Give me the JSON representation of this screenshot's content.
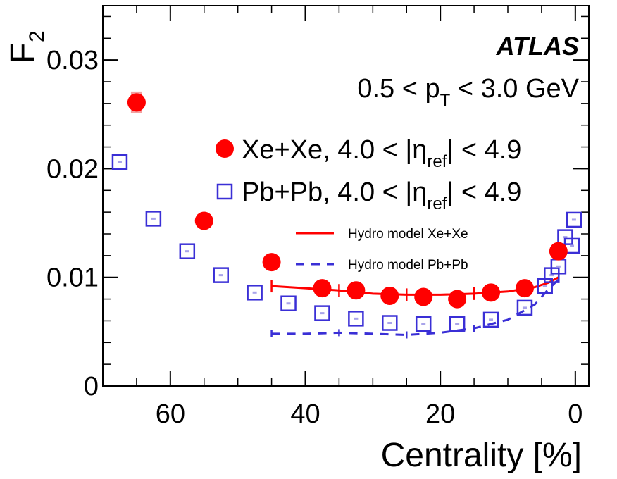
{
  "chart_data": {
    "type": "scatter",
    "title": "",
    "xlabel": "Centrality [%]",
    "ylabel": "F",
    "ylabel_subscript": "2",
    "xlim": [
      70,
      -2
    ],
    "ylim": [
      0,
      0.035
    ],
    "x_ticks": [
      60,
      40,
      20,
      0
    ],
    "y_ticks": [
      0,
      0.01,
      0.02,
      0.03
    ],
    "x_tick_labels": [
      "60",
      "40",
      "20",
      "0"
    ],
    "y_tick_labels": [
      "0",
      "0.01",
      "0.02",
      "0.03"
    ],
    "annotations": {
      "experiment": "ATLAS",
      "pt_range": {
        "prefix": "0.5 < p",
        "sub": "T",
        "suffix": " < 3.0 GeV"
      }
    },
    "series": [
      {
        "name": "Xe+Xe, 4.0 < |η_ref| < 4.9",
        "legend": {
          "prefix": "Xe+Xe, 4.0 < |η",
          "sub": "ref",
          "suffix": "| < 4.9"
        },
        "marker": "filled-circle",
        "color": "#ff0000",
        "x": [
          65,
          55,
          45,
          37.5,
          32.5,
          27.5,
          22.5,
          17.5,
          12.5,
          7.5,
          2.5
        ],
        "y": [
          0.0261,
          0.0152,
          0.0114,
          0.009,
          0.0088,
          0.0083,
          0.0082,
          0.008,
          0.0086,
          0.009,
          0.0124
        ],
        "sys_err": [
          0.001,
          0.0004,
          0.0003,
          0.0002,
          0.0002,
          0.0002,
          0.0002,
          0.0002,
          0.0002,
          0.0002,
          0.0003
        ]
      },
      {
        "name": "Pb+Pb, 4.0 < |η_ref| < 4.9",
        "legend": {
          "prefix": "Pb+Pb, 4.0 < |η",
          "sub": "ref",
          "suffix": "| < 4.9"
        },
        "marker": "open-square",
        "color": "#3a2fd6",
        "x": [
          67.5,
          62.5,
          57.5,
          52.5,
          47.5,
          42.5,
          37.5,
          32.5,
          27.5,
          22.5,
          17.5,
          12.5,
          7.5,
          4.5,
          3.5,
          2.5,
          1.5,
          0.5,
          0.2
        ],
        "y": [
          0.0206,
          0.0154,
          0.0124,
          0.0102,
          0.0086,
          0.0076,
          0.0067,
          0.0062,
          0.0058,
          0.0057,
          0.0057,
          0.0061,
          0.0072,
          0.0092,
          0.0102,
          0.011,
          0.0137,
          0.0129,
          0.0153
        ]
      },
      {
        "name": "Hydro model Xe+Xe",
        "type": "line",
        "style": "solid",
        "color": "#ff0000",
        "x": [
          45,
          40,
          35,
          30,
          25,
          20,
          15,
          10,
          6,
          4,
          2.5
        ],
        "y": [
          0.0092,
          0.009,
          0.0088,
          0.0085,
          0.0084,
          0.0084,
          0.0085,
          0.0087,
          0.0091,
          0.0095,
          0.01
        ]
      },
      {
        "name": "Hydro model Pb+Pb",
        "type": "line",
        "style": "dashed",
        "color": "#3a2fd6",
        "x": [
          45,
          40,
          35,
          30,
          25,
          20,
          15,
          10,
          6,
          4,
          2.5
        ],
        "y": [
          0.0048,
          0.0048,
          0.0049,
          0.0048,
          0.0047,
          0.0049,
          0.0053,
          0.0061,
          0.0075,
          0.0089,
          0.0098
        ]
      }
    ],
    "legend_small": {
      "xe_label": "Hydro model Xe+Xe",
      "pb_label": "Hydro model Pb+Pb"
    }
  }
}
